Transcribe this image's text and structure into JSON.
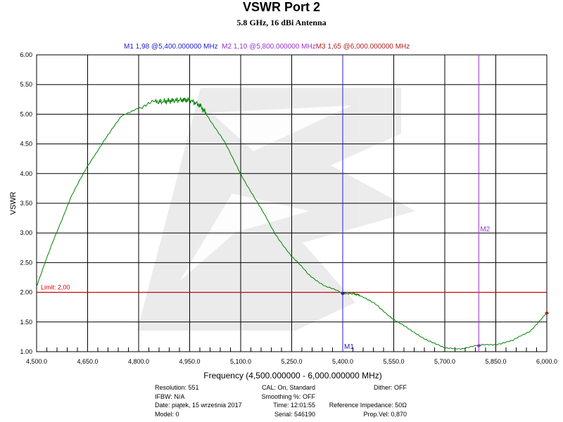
{
  "chart_data": {
    "type": "line",
    "title": "VSWR Port 2",
    "subtitle": "5.8 GHz, 16 dBi Antenna",
    "xlabel": "Frequency (4,500.000000 - 6,000.000000 MHz)",
    "ylabel": "VSWR",
    "xlim": [
      4500,
      6000
    ],
    "ylim": [
      1.0,
      6.0
    ],
    "x_ticks": [
      "4,500.0",
      "4,650.0",
      "4,800.0",
      "4,950.0",
      "5,100.0",
      "5,250.0",
      "5,400.0",
      "5,550.0",
      "5,700.0",
      "5,850.0",
      "6,000.0"
    ],
    "y_ticks": [
      "1.00",
      "1.50",
      "2.00",
      "2.50",
      "3.00",
      "3.50",
      "4.00",
      "4.50",
      "5.00",
      "5.50",
      "6.00"
    ],
    "grid": true,
    "series": [
      {
        "color": "#008000",
        "x": [
          4500,
          4550,
          4600,
          4650,
          4700,
          4750,
          4800,
          4850,
          4880,
          4900,
          4930,
          4950,
          4980,
          5000,
          5050,
          5100,
          5150,
          5200,
          5250,
          5300,
          5350,
          5400,
          5430,
          5450,
          5500,
          5550,
          5600,
          5650,
          5700,
          5750,
          5800,
          5850,
          5900,
          5950,
          6000
        ],
        "y": [
          2.1,
          2.88,
          3.6,
          4.12,
          4.58,
          4.96,
          5.12,
          5.2,
          5.22,
          5.23,
          5.24,
          5.24,
          5.15,
          5.0,
          4.55,
          4.0,
          3.5,
          3.0,
          2.6,
          2.3,
          2.1,
          1.98,
          1.98,
          1.95,
          1.78,
          1.55,
          1.35,
          1.2,
          1.05,
          1.06,
          1.1,
          1.13,
          1.18,
          1.35,
          1.65
        ]
      }
    ],
    "limit": {
      "label": "Limit: 2,00",
      "value": 2.0,
      "color": "#e00000"
    },
    "markers": [
      {
        "name": "M1",
        "text": "M1  1,98 @5,400.000000 MHz",
        "x": 5400,
        "y": 1.98,
        "color": "#2020d0"
      },
      {
        "name": "M2",
        "text": "M2  1,10 @5,800.000000 MHz",
        "x": 5800,
        "y": 1.1,
        "color": "#9933cc"
      },
      {
        "name": "M3",
        "text": "M3  1,65 @6,000.000000 MHz",
        "x": 6000,
        "y": 1.65,
        "color": "#b02020"
      }
    ]
  },
  "info": {
    "col1": [
      "Resolution: 551",
      "IFBW: N/A",
      "Date: piątek, 15 września 2017",
      "Model: 0"
    ],
    "col2": [
      "CAL: On, Standard",
      "Smoothing %:  OFF",
      "Time: 12:01:55",
      "Serial: 546190"
    ],
    "col3": [
      "Dither:  OFF",
      "",
      "Reference Impedance: 50Ω",
      "Prop.Vel: 0,870"
    ]
  }
}
